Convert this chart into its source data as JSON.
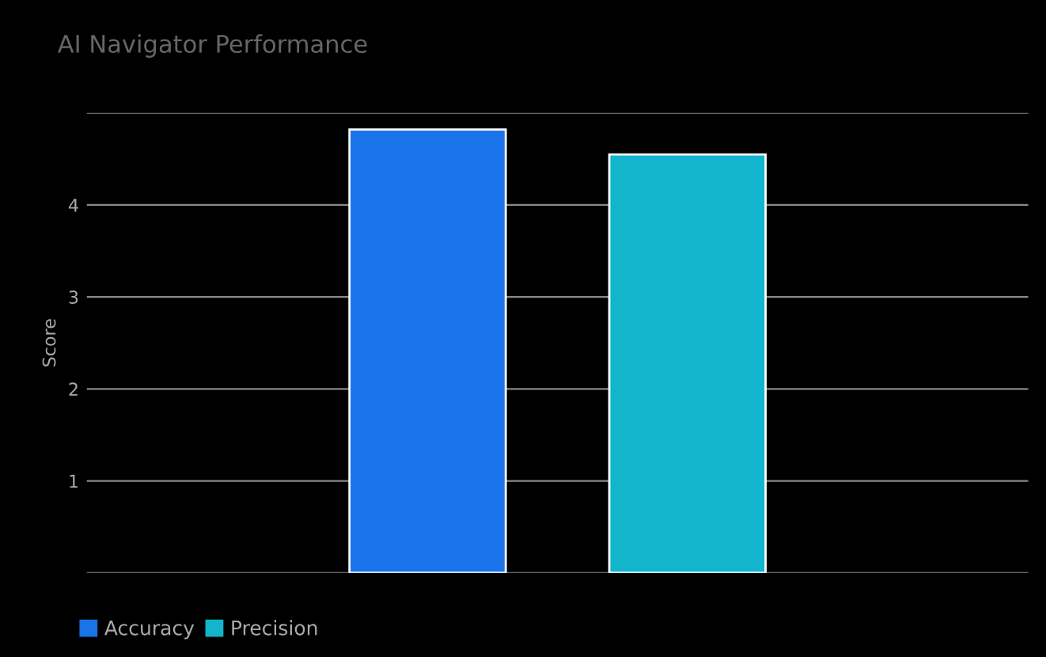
{
  "chart_data": {
    "type": "bar",
    "title": "AI Navigator Performance",
    "ylabel": "Score",
    "categories": [
      null
    ],
    "series": [
      {
        "name": "Accuracy",
        "color": "#1a73e8",
        "values": [
          4.82
        ]
      },
      {
        "name": "Precision",
        "color": "#12b5cb",
        "values": [
          4.55
        ]
      }
    ],
    "ylim": [
      0,
      5
    ],
    "yticks": [
      {
        "value": 0,
        "label": null
      },
      1,
      2,
      3,
      4,
      {
        "value": 5,
        "label": null
      }
    ],
    "grid": "y",
    "legend": "bottom"
  }
}
